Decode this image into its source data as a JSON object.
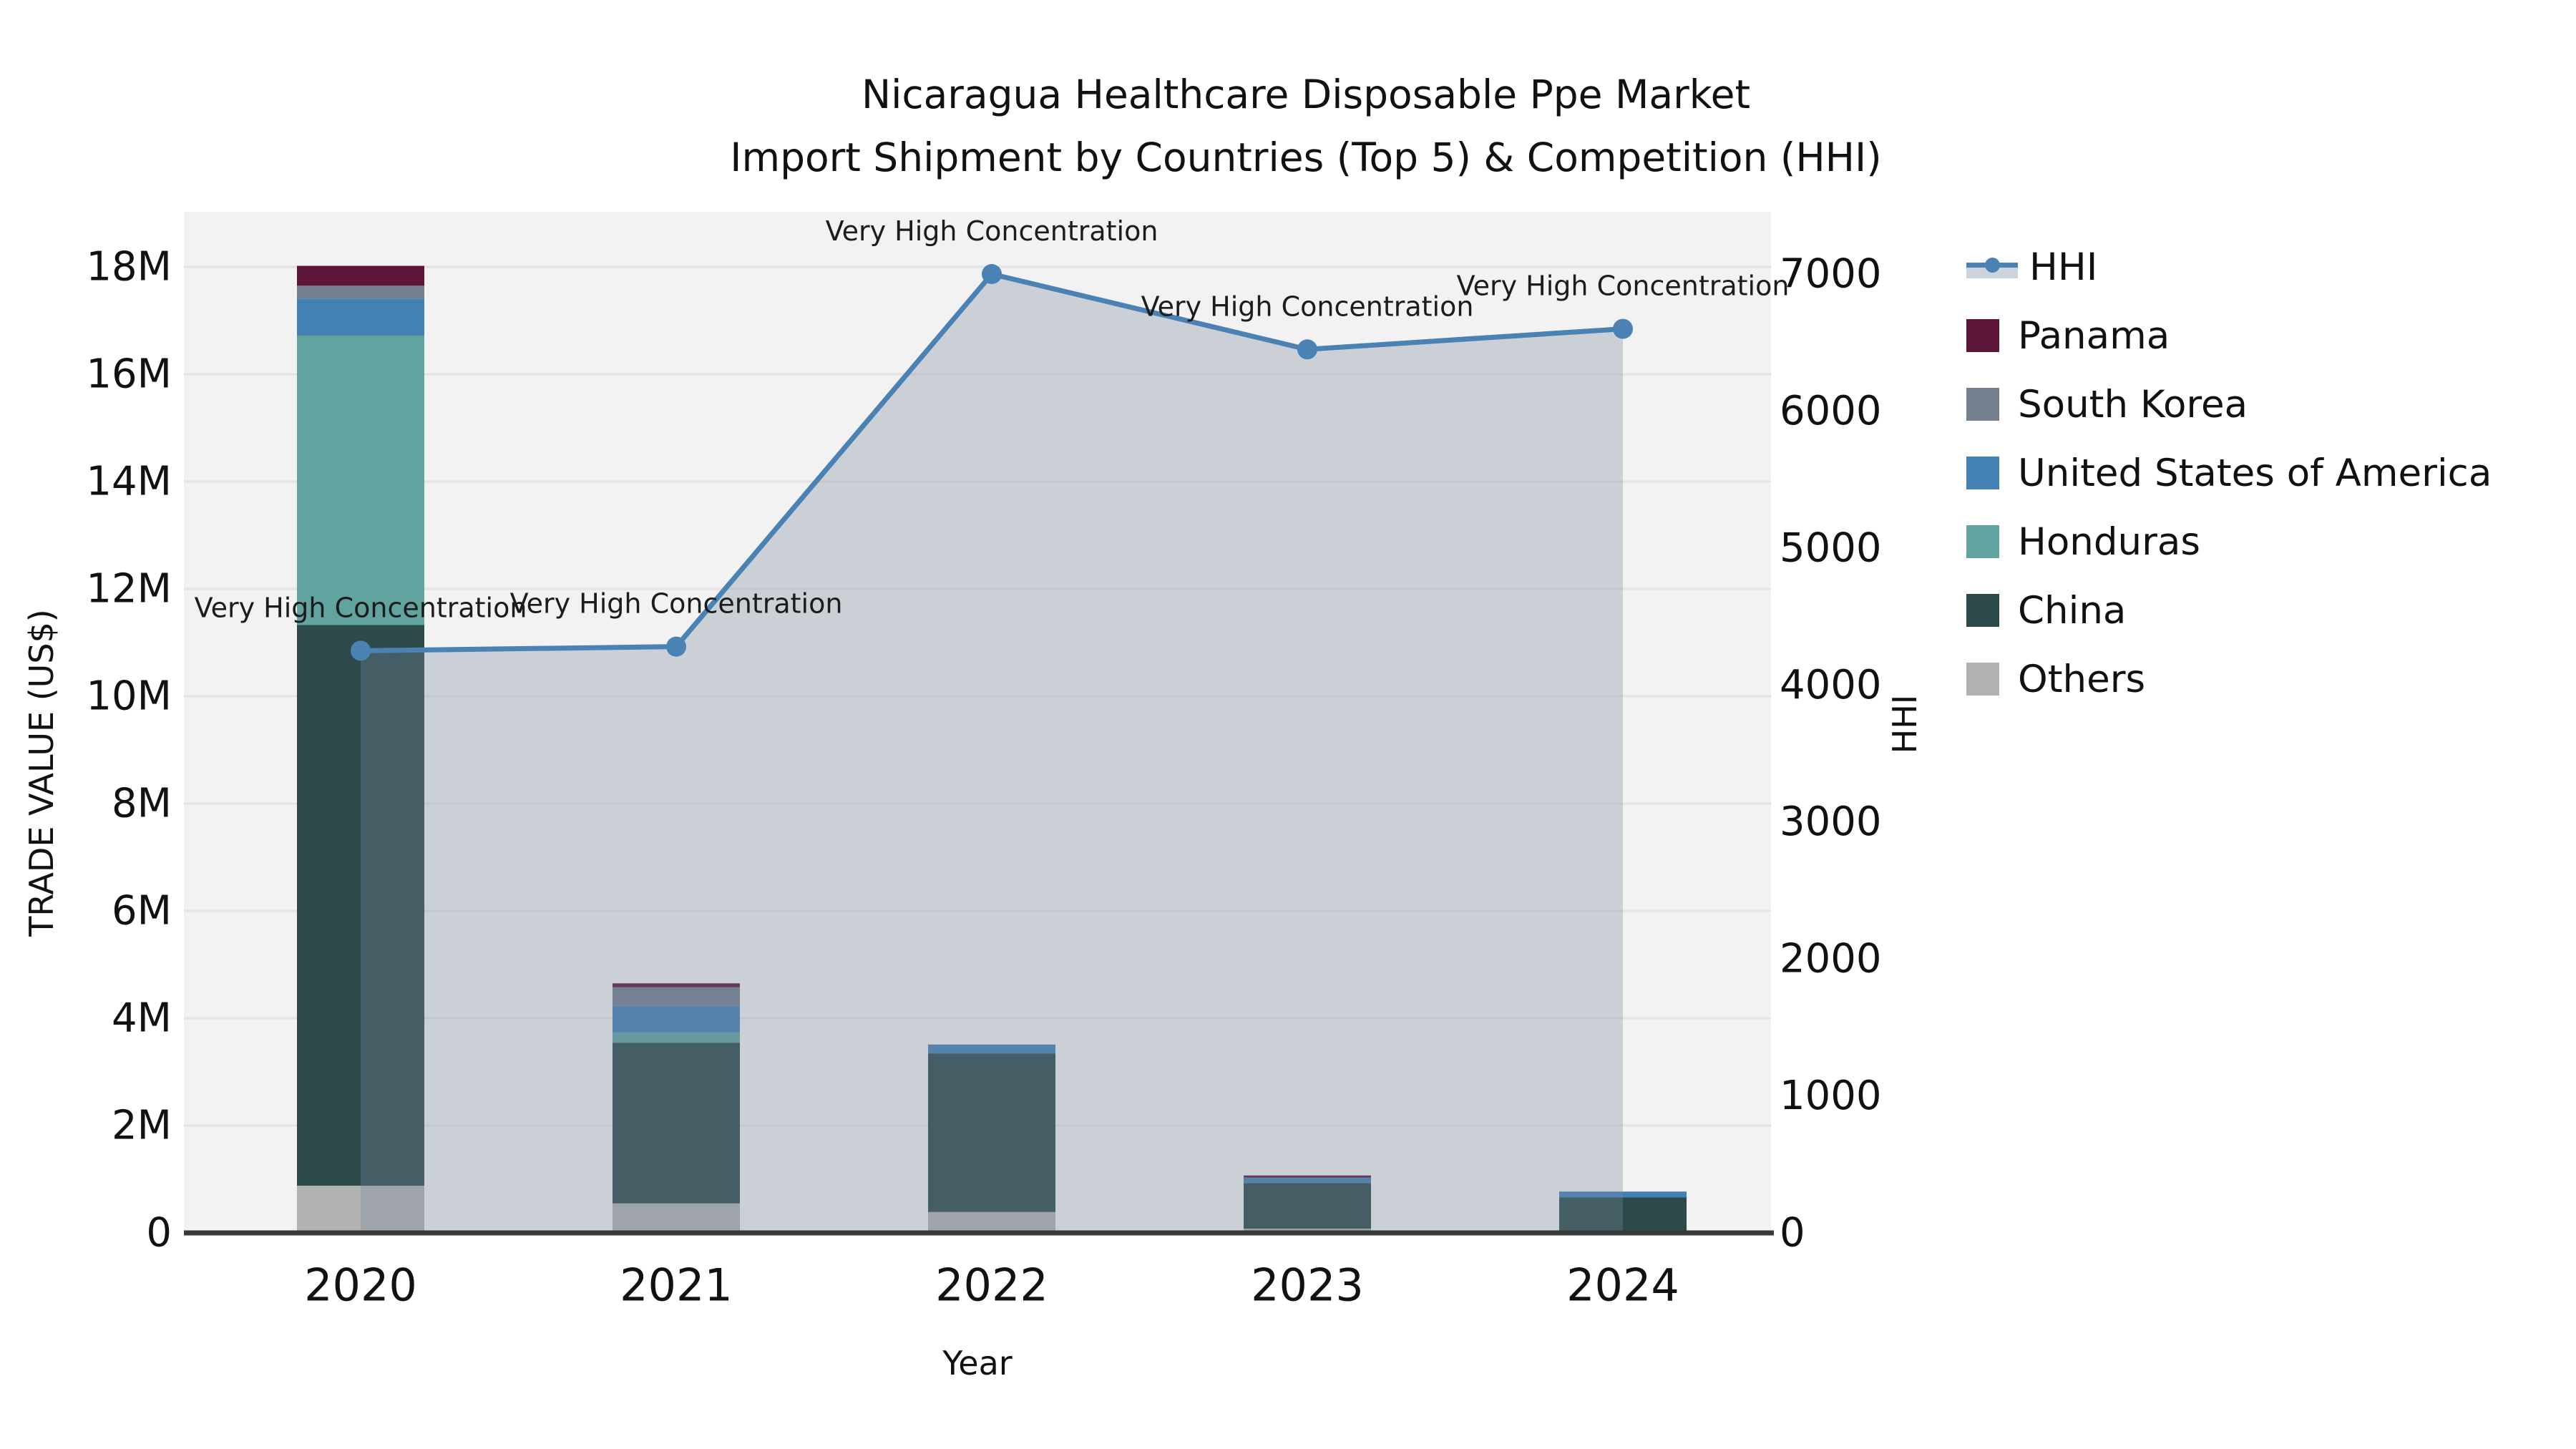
{
  "title": {
    "line1": "Nicaragua Healthcare Disposable Ppe Market",
    "line2": "Import Shipment by Countries (Top 5) & Competition (HHI)"
  },
  "legend": {
    "items": [
      {
        "label": "HHI",
        "marker": "line",
        "color": "#4a82b4",
        "fill": "#ccd3dd"
      },
      {
        "label": "Panama",
        "marker": "square",
        "color": "#5d1637"
      },
      {
        "label": "South Korea",
        "marker": "square",
        "color": "#75808f"
      },
      {
        "label": "United States of America",
        "marker": "square",
        "color": "#4381b5"
      },
      {
        "label": "Honduras",
        "marker": "square",
        "color": "#60a39f"
      },
      {
        "label": "China",
        "marker": "square",
        "color": "#2d4a4b"
      },
      {
        "label": "Others",
        "marker": "square",
        "color": "#b1b1b1"
      }
    ]
  },
  "chart_data": {
    "type": "combo",
    "subtype": "stacked-bar + line-area, dual axis",
    "categories": [
      "2020",
      "2021",
      "2022",
      "2023",
      "2024"
    ],
    "bar_value_unit": "millions of US$",
    "series": [
      {
        "name": "Others",
        "type": "bar",
        "color": "#b1b1b1",
        "values": [
          0.88,
          0.55,
          0.39,
          0.08,
          0.04
        ]
      },
      {
        "name": "China",
        "type": "bar",
        "color": "#2d4a4b",
        "values": [
          10.45,
          2.99,
          2.95,
          0.85,
          0.62
        ]
      },
      {
        "name": "Honduras",
        "type": "bar",
        "color": "#60a39f",
        "values": [
          5.39,
          0.2,
          0,
          0,
          0
        ]
      },
      {
        "name": "United States of America",
        "type": "bar",
        "color": "#4381b5",
        "values": [
          0.69,
          0.49,
          0.17,
          0.1,
          0.11
        ]
      },
      {
        "name": "South Korea",
        "type": "bar",
        "color": "#75808f",
        "values": [
          0.24,
          0.35,
          0,
          0,
          0
        ]
      },
      {
        "name": "Panama",
        "type": "bar",
        "color": "#5d1637",
        "values": [
          0.37,
          0.07,
          0,
          0.04,
          0
        ]
      }
    ],
    "line": {
      "name": "HHI",
      "axis": "right",
      "color": "#4a82b4",
      "area_fill": "rgba(120,134,154,0.32)",
      "values": [
        4250,
        4280,
        7000,
        6450,
        6600
      ]
    },
    "annotations": [
      {
        "category": "2020",
        "text": "Very High Concentration"
      },
      {
        "category": "2021",
        "text": "Very High Concentration"
      },
      {
        "category": "2022",
        "text": "Very High Concentration"
      },
      {
        "category": "2023",
        "text": "Very High Concentration"
      },
      {
        "category": "2024",
        "text": "Very High Concentration"
      }
    ],
    "x": {
      "label": "Year"
    },
    "y_left": {
      "label": "TRADE VALUE (US$)",
      "min": 0,
      "max": 18000000,
      "ticks": [
        "0",
        "2M",
        "4M",
        "6M",
        "8M",
        "10M",
        "12M",
        "14M",
        "16M",
        "18M"
      ]
    },
    "y_right": {
      "label": "HHI",
      "min": 0,
      "max": 7000,
      "ticks": [
        "0",
        "1000",
        "2000",
        "3000",
        "4000",
        "5000",
        "6000",
        "7000"
      ]
    },
    "grid": true,
    "legend_position": "right",
    "plot_background": "#f2f2f2"
  }
}
